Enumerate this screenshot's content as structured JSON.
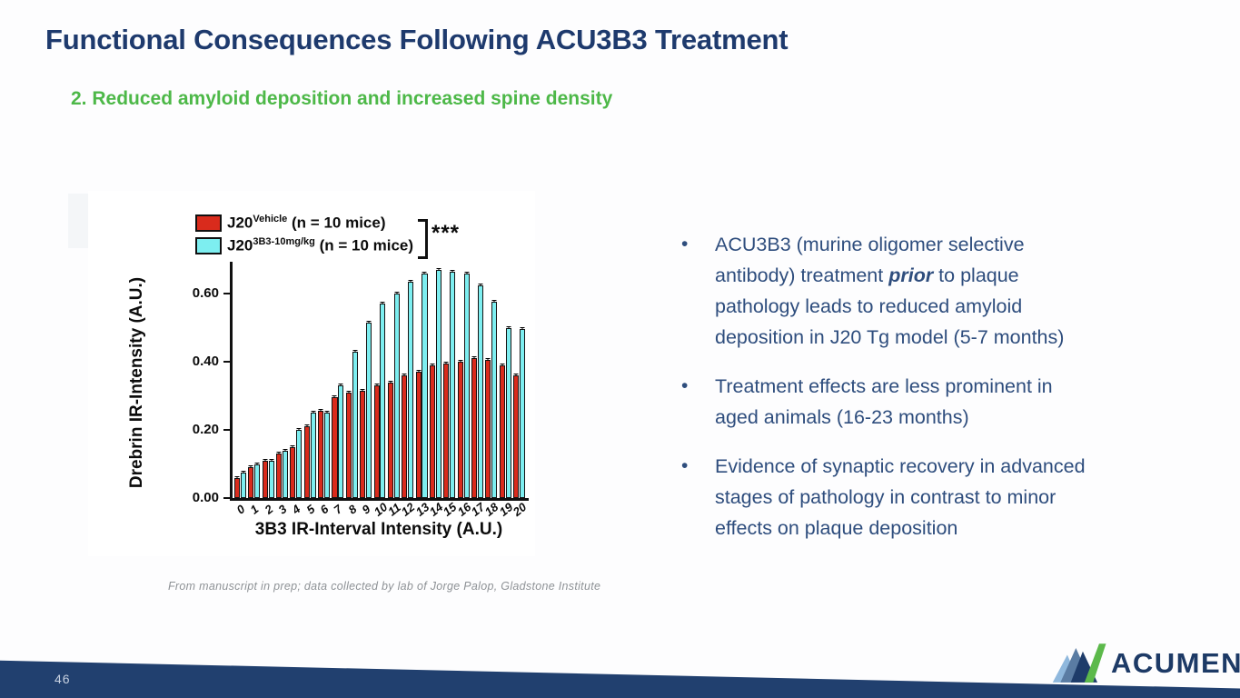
{
  "slide": {
    "title": "Functional Consequences Following ACU3B3 Treatment",
    "subtitle": "2. Reduced amyloid deposition and increased spine density",
    "footnote": "From manuscript in prep; data collected by lab of Jorge Palop, Gladstone Institute",
    "page_number": "46",
    "bullet_char": "•",
    "logo_text": "ACUMEN"
  },
  "bullets": [
    {
      "lines": [
        [
          {
            "t": "ACU3B3 (murine oligomer selective"
          }
        ],
        [
          {
            "t": "antibody) treatment "
          },
          {
            "t": "prior",
            "em": true
          },
          {
            "t": " to plaque"
          }
        ],
        [
          {
            "t": "pathology leads to reduced amyloid"
          }
        ],
        [
          {
            "t": "deposition in J20 Tg model (5-7 months)"
          }
        ]
      ]
    },
    {
      "lines": [
        [
          {
            "t": "Treatment effects are less prominent in"
          }
        ],
        [
          {
            "t": "aged animals (16-23 months)"
          }
        ]
      ]
    },
    {
      "lines": [
        [
          {
            "t": "Evidence of synaptic recovery in advanced"
          }
        ],
        [
          {
            "t": "stages of pathology in contrast to minor"
          }
        ],
        [
          {
            "t": "effects on plaque deposition"
          }
        ]
      ]
    }
  ],
  "chart_data": {
    "type": "bar",
    "title": "",
    "xlabel": "3B3 IR-Interval Intensity (A.U.)",
    "ylabel": "Drebrin IR-Intensity (A.U.)",
    "categories": [
      "0",
      "1",
      "2",
      "3",
      "4",
      "5",
      "6",
      "7",
      "8",
      "9",
      "10",
      "11",
      "12",
      "13",
      "14",
      "15",
      "16",
      "17",
      "18",
      "19",
      "20"
    ],
    "yticks": [
      "0.00",
      "0.20",
      "0.40",
      "0.60"
    ],
    "ylim": [
      0,
      0.7
    ],
    "grid": false,
    "legend_position": "top",
    "significance": "***",
    "series": [
      {
        "name": "J20 Vehicle (n = 10 mice)",
        "label_base": "J20",
        "label_sup": "Vehicle",
        "label_rest": " (n = 10 mice)",
        "color": "#d92b1c",
        "values": [
          0.06,
          0.09,
          0.11,
          0.13,
          0.15,
          0.21,
          0.255,
          0.295,
          0.31,
          0.315,
          0.33,
          0.34,
          0.36,
          0.37,
          0.39,
          0.395,
          0.4,
          0.41,
          0.405,
          0.39,
          0.36
        ]
      },
      {
        "name": "J20 3B3-10mg/kg (n = 10 mice)",
        "label_base": "J20",
        "label_sup": "3B3-10mg/kg",
        "label_rest": " (n = 10 mice)",
        "color": "#7deef0",
        "values": [
          0.075,
          0.1,
          0.11,
          0.14,
          0.2,
          0.25,
          0.25,
          0.33,
          0.43,
          0.515,
          0.57,
          0.6,
          0.635,
          0.66,
          0.67,
          0.665,
          0.66,
          0.625,
          0.575,
          0.5,
          0.495
        ]
      }
    ]
  },
  "colors": {
    "title": "#1e3a6d",
    "subtitle_accent": "#4db848",
    "body_text": "#2e4d7d",
    "series_vehicle": "#d92b1c",
    "series_treated": "#7deef0",
    "footer_band": "#21406f",
    "logo_navy": "#1d3a66",
    "logo_green": "#5cb94b"
  }
}
